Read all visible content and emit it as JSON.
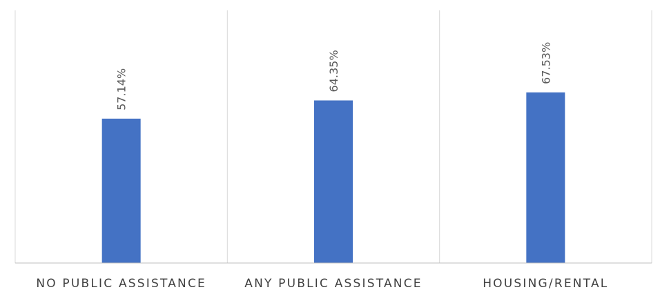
{
  "chart_data": {
    "type": "bar",
    "categories": [
      "NO PUBLIC ASSISTANCE",
      "ANY PUBLIC ASSISTANCE",
      "HOUSING/RENTAL"
    ],
    "values": [
      57.14,
      64.35,
      67.53
    ],
    "data_labels": [
      "57.14%",
      "64.35%",
      "67.53%"
    ],
    "ylim": [
      0,
      100
    ],
    "grid": "vertical category separators",
    "bar_color": "#4472C4",
    "gridline_color": "#D9D9D9",
    "axis_color": "#BFBFBF"
  }
}
